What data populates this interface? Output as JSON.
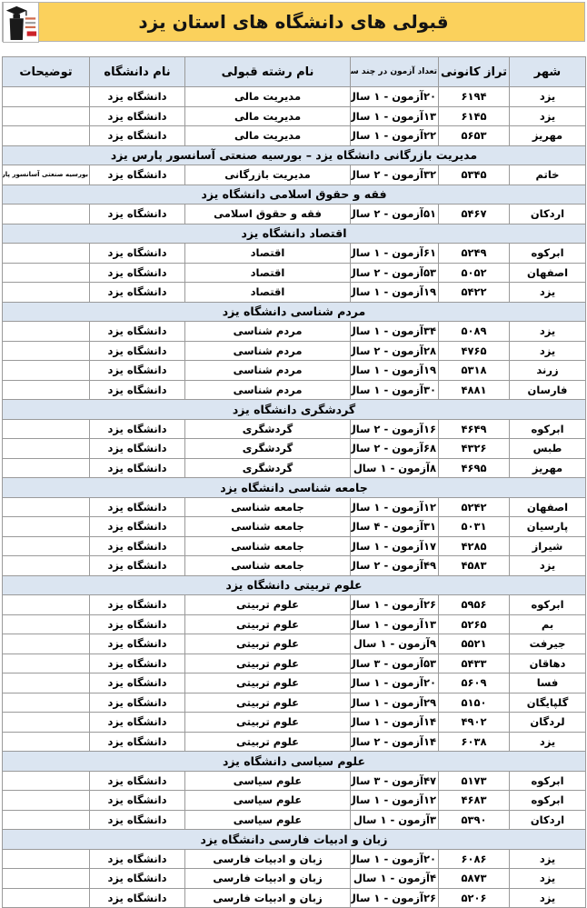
{
  "title": "قبولی های دانشگاه های استان یزد",
  "logo": {
    "name": "kanoon-graduate-logo",
    "accent_red": "#cc2229",
    "figure_black": "#1a1a1a"
  },
  "colors": {
    "banner_yellow": "#fbd15c",
    "header_blue": "#dbe5f1",
    "border_gray": "#9a9a9a"
  },
  "columns": [
    "شهر",
    "تراز کانونی",
    "تعداد آزمون در چند سال",
    "نام رشته قبولی",
    "نام دانشگاه",
    "توضیحات"
  ],
  "rows": [
    {
      "type": "data",
      "city": "یزد",
      "score": "۶۱۹۴",
      "exams": "۲۰آزمون - ۱ سال",
      "major": "مدیریت مالی",
      "university": "دانشگاه یزد",
      "note": ""
    },
    {
      "type": "data",
      "city": "یزد",
      "score": "۶۱۴۵",
      "exams": "۱۳آزمون - ۱ سال",
      "major": "مدیریت مالی",
      "university": "دانشگاه یزد",
      "note": ""
    },
    {
      "type": "data",
      "city": "مهریز",
      "score": "۵۶۵۳",
      "exams": "۲۲آزمون - ۱ سال",
      "major": "مدیریت مالی",
      "university": "دانشگاه یزد",
      "note": ""
    },
    {
      "type": "section",
      "label": "مدیریت بازرگانی دانشگاه یزد – بورسیه صنعتی آسانسور پارس یزد"
    },
    {
      "type": "data",
      "city": "خاتم",
      "score": "۵۳۴۵",
      "exams": "۳۲آزمون - ۲ سال",
      "major": "مدیریت بازرگانی",
      "university": "دانشگاه یزد",
      "note": "بورسیه صنعتی آسانسور پارس یزد"
    },
    {
      "type": "section",
      "label": "فقه و حقوق اسلامی دانشگاه یزد"
    },
    {
      "type": "data",
      "city": "اردکان",
      "score": "۵۴۶۷",
      "exams": "۵۱آزمون - ۲ سال",
      "major": "فقه و حقوق اسلامی",
      "university": "دانشگاه یزد",
      "note": ""
    },
    {
      "type": "section",
      "label": "اقتصاد دانشگاه یزد"
    },
    {
      "type": "data",
      "city": "ابرکوه",
      "score": "۵۲۴۹",
      "exams": "۶۱آزمون - ۱ سال",
      "major": "اقتصاد",
      "university": "دانشگاه یزد",
      "note": ""
    },
    {
      "type": "data",
      "city": "اصفهان",
      "score": "۵۰۵۲",
      "exams": "۵۳آزمون - ۲ سال",
      "major": "اقتصاد",
      "university": "دانشگاه یزد",
      "note": ""
    },
    {
      "type": "data",
      "city": "یزد",
      "score": "۵۴۲۲",
      "exams": "۱۹آزمون - ۱ سال",
      "major": "اقتصاد",
      "university": "دانشگاه یزد",
      "note": ""
    },
    {
      "type": "section",
      "label": "مردم شناسی دانشگاه یزد"
    },
    {
      "type": "data",
      "city": "یزد",
      "score": "۵۰۸۹",
      "exams": "۳۴آزمون - ۱ سال",
      "major": "مردم شناسی",
      "university": "دانشگاه یزد",
      "note": ""
    },
    {
      "type": "data",
      "city": "یزد",
      "score": "۴۷۶۵",
      "exams": "۲۸آزمون - ۲ سال",
      "major": "مردم شناسی",
      "university": "دانشگاه یزد",
      "note": ""
    },
    {
      "type": "data",
      "city": "زرند",
      "score": "۵۳۱۸",
      "exams": "۱۹آزمون - ۱ سال",
      "major": "مردم شناسی",
      "university": "دانشگاه یزد",
      "note": ""
    },
    {
      "type": "data",
      "city": "فارسان",
      "score": "۴۸۸۱",
      "exams": "۳۰آزمون - ۱ سال",
      "major": "مردم شناسی",
      "university": "دانشگاه یزد",
      "note": ""
    },
    {
      "type": "section",
      "label": "گردشگری دانشگاه یزد"
    },
    {
      "type": "data",
      "city": "ابرکوه",
      "score": "۴۶۴۹",
      "exams": "۱۶آزمون - ۲ سال",
      "major": "گردشگری",
      "university": "دانشگاه یزد",
      "note": ""
    },
    {
      "type": "data",
      "city": "طبس",
      "score": "۴۳۲۶",
      "exams": "۶۸آزمون - ۲ سال",
      "major": "گردشگری",
      "university": "دانشگاه یزد",
      "note": ""
    },
    {
      "type": "data",
      "city": "مهریز",
      "score": "۴۶۹۵",
      "exams": "۸آزمون - ۱ سال",
      "major": "گردشگری",
      "university": "دانشگاه یزد",
      "note": ""
    },
    {
      "type": "section",
      "label": "جامعه شناسی دانشگاه یزد"
    },
    {
      "type": "data",
      "city": "اصفهان",
      "score": "۵۲۴۲",
      "exams": "۱۲آزمون - ۱ سال",
      "major": "جامعه شناسی",
      "university": "دانشگاه یزد",
      "note": ""
    },
    {
      "type": "data",
      "city": "پارسیان",
      "score": "۵۰۳۱",
      "exams": "۳۱آزمون - ۴ سال",
      "major": "جامعه شناسی",
      "university": "دانشگاه یزد",
      "note": ""
    },
    {
      "type": "data",
      "city": "شیراز",
      "score": "۴۲۸۵",
      "exams": "۱۷آزمون - ۱ سال",
      "major": "جامعه شناسی",
      "university": "دانشگاه یزد",
      "note": ""
    },
    {
      "type": "data",
      "city": "یزد",
      "score": "۴۵۸۳",
      "exams": "۴۹آزمون - ۲ سال",
      "major": "جامعه شناسی",
      "university": "دانشگاه یزد",
      "note": ""
    },
    {
      "type": "section",
      "label": "علوم تربیتی دانشگاه یزد"
    },
    {
      "type": "data",
      "city": "ابرکوه",
      "score": "۵۹۵۶",
      "exams": "۲۶آزمون - ۱ سال",
      "major": "علوم تربیتی",
      "university": "دانشگاه یزد",
      "note": ""
    },
    {
      "type": "data",
      "city": "بم",
      "score": "۵۲۶۵",
      "exams": "۱۳آزمون - ۱ سال",
      "major": "علوم تربیتی",
      "university": "دانشگاه یزد",
      "note": ""
    },
    {
      "type": "data",
      "city": "جیرفت",
      "score": "۵۵۲۱",
      "exams": "۹آزمون - ۱ سال",
      "major": "علوم تربیتی",
      "university": "دانشگاه یزد",
      "note": ""
    },
    {
      "type": "data",
      "city": "دهاقان",
      "score": "۵۴۳۳",
      "exams": "۵۳آزمون - ۳ سال",
      "major": "علوم تربیتی",
      "university": "دانشگاه یزد",
      "note": ""
    },
    {
      "type": "data",
      "city": "فسا",
      "score": "۵۶۰۹",
      "exams": "۲۰آزمون - ۱ سال",
      "major": "علوم تربیتی",
      "university": "دانشگاه یزد",
      "note": ""
    },
    {
      "type": "data",
      "city": "گلپایگان",
      "score": "۵۱۵۰",
      "exams": "۲۹آزمون - ۱ سال",
      "major": "علوم تربیتی",
      "university": "دانشگاه یزد",
      "note": ""
    },
    {
      "type": "data",
      "city": "لردگان",
      "score": "۴۹۰۲",
      "exams": "۱۴آزمون - ۱ سال",
      "major": "علوم تربیتی",
      "university": "دانشگاه یزد",
      "note": ""
    },
    {
      "type": "data",
      "city": "یزد",
      "score": "۶۰۳۸",
      "exams": "۱۴آزمون - ۲ سال",
      "major": "علوم تربیتی",
      "university": "دانشگاه یزد",
      "note": ""
    },
    {
      "type": "section",
      "label": "علوم سیاسی دانشگاه یزد"
    },
    {
      "type": "data",
      "city": "ابرکوه",
      "score": "۵۱۷۳",
      "exams": "۴۷آزمون - ۳ سال",
      "major": "علوم سیاسی",
      "university": "دانشگاه یزد",
      "note": ""
    },
    {
      "type": "data",
      "city": "ابرکوه",
      "score": "۴۶۸۳",
      "exams": "۱۲آزمون - ۱ سال",
      "major": "علوم سیاسی",
      "university": "دانشگاه یزد",
      "note": ""
    },
    {
      "type": "data",
      "city": "اردکان",
      "score": "۵۳۹۰",
      "exams": "۳آزمون - ۱ سال",
      "major": "علوم سیاسی",
      "university": "دانشگاه یزد",
      "note": ""
    },
    {
      "type": "section",
      "label": "زبان و ادبیات فارسی دانشگاه یزد"
    },
    {
      "type": "data",
      "city": "یزد",
      "score": "۶۰۸۶",
      "exams": "۲۰آزمون - ۱ سال",
      "major": "زبان و ادبیات فارسی",
      "university": "دانشگاه یزد",
      "note": ""
    },
    {
      "type": "data",
      "city": "یزد",
      "score": "۵۸۷۳",
      "exams": "۴آزمون - ۱ سال",
      "major": "زبان و ادبیات فارسی",
      "university": "دانشگاه یزد",
      "note": ""
    },
    {
      "type": "data",
      "city": "یزد",
      "score": "۵۲۰۶",
      "exams": "۲۶آزمون - ۱ سال",
      "major": "زبان و ادبیات فارسی",
      "university": "دانشگاه یزد",
      "note": ""
    }
  ]
}
